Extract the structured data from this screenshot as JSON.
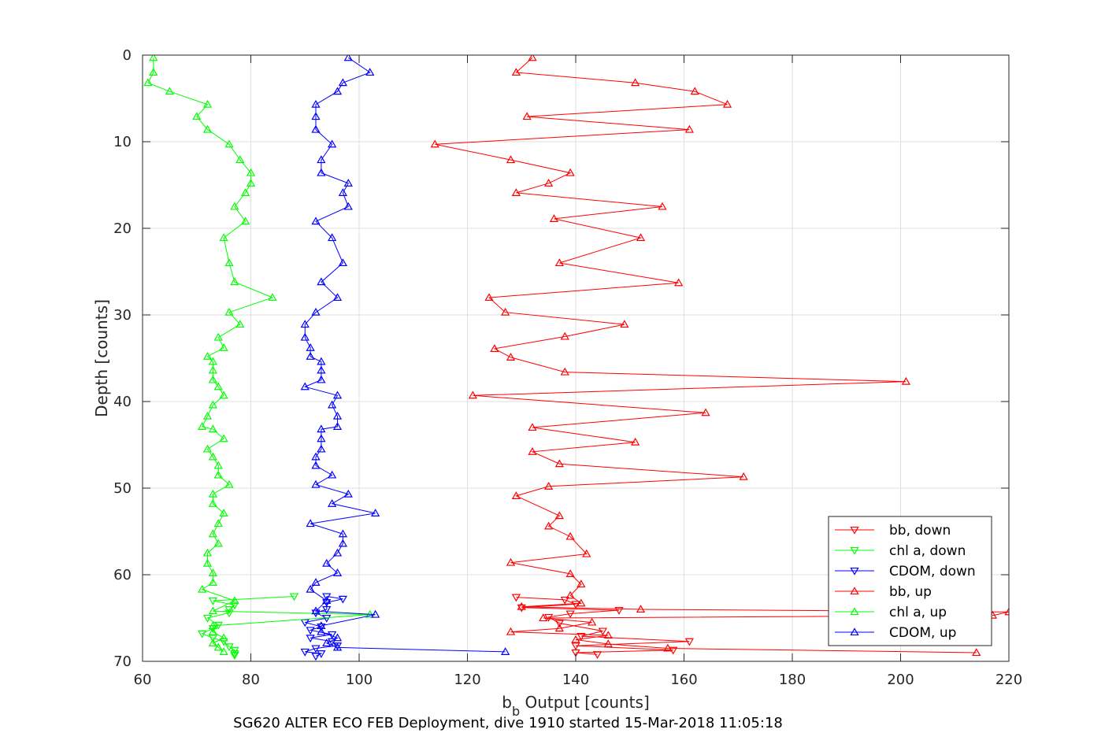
{
  "chart_data": {
    "type": "line",
    "xlabel_main": "b",
    "xlabel_sub": "b",
    "xlabel_rest": " Output [counts]",
    "ylabel": "Depth [counts]",
    "caption": "SG620 ALTER ECO FEB Deployment, dive 1910 started 15-Mar-2018 11:05:18",
    "xlim": [
      60,
      220
    ],
    "ylim": [
      0,
      70
    ],
    "y_reversed": true,
    "grid": true,
    "legend_position": "bottom-right",
    "xticks": [
      "60",
      "80",
      "100",
      "120",
      "140",
      "160",
      "180",
      "200",
      "220"
    ],
    "yticks": [
      "0",
      "10",
      "20",
      "30",
      "40",
      "50",
      "60",
      "70"
    ],
    "series": [
      {
        "name": "bb, down",
        "color": "#ff0000",
        "marker": "triangle-down",
        "points": [
          [
            129,
            62.6
          ],
          [
            138,
            62.9
          ],
          [
            140,
            63.4
          ],
          [
            130,
            63.8
          ],
          [
            148,
            64.1
          ],
          [
            139,
            64.5
          ],
          [
            135,
            64.9
          ],
          [
            137,
            65.6
          ],
          [
            145,
            66.5
          ],
          [
            141,
            67.1
          ],
          [
            161,
            67.7
          ],
          [
            140,
            68.2
          ],
          [
            158,
            68.7
          ],
          [
            140,
            69.0
          ],
          [
            144,
            69.2
          ]
        ]
      },
      {
        "name": "chl a, down",
        "color": "#00ff00",
        "marker": "triangle-down",
        "points": [
          [
            88,
            62.5
          ],
          [
            73,
            63.0
          ],
          [
            77,
            63.5
          ],
          [
            76,
            64.0
          ],
          [
            76,
            64.4
          ],
          [
            72,
            65.0
          ],
          [
            74,
            65.8
          ],
          [
            73,
            66.2
          ],
          [
            71,
            66.8
          ],
          [
            73,
            67.3
          ],
          [
            75,
            67.7
          ],
          [
            76,
            68.3
          ],
          [
            77,
            68.7
          ],
          [
            77,
            69.1
          ],
          [
            77,
            69.3
          ]
        ]
      },
      {
        "name": "CDOM, down",
        "color": "#0000ff",
        "marker": "triangle-down",
        "points": [
          [
            94,
            62.5
          ],
          [
            97,
            62.8
          ],
          [
            94,
            63.2
          ],
          [
            94,
            64.0
          ],
          [
            92,
            64.4
          ],
          [
            94,
            65.0
          ],
          [
            90,
            65.5
          ],
          [
            93,
            66.0
          ],
          [
            91,
            66.4
          ],
          [
            95,
            66.9
          ],
          [
            91,
            67.3
          ],
          [
            95,
            67.7
          ],
          [
            96,
            68.2
          ],
          [
            92,
            68.5
          ],
          [
            90,
            68.9
          ],
          [
            93,
            69.1
          ],
          [
            92,
            69.4
          ]
        ]
      },
      {
        "name": "bb, up",
        "color": "#ff0000",
        "marker": "triangle-up",
        "points": [
          [
            214,
            69.0
          ],
          [
            157,
            68.5
          ],
          [
            146,
            68.0
          ],
          [
            140,
            67.5
          ],
          [
            146,
            67.0
          ],
          [
            128,
            66.6
          ],
          [
            137,
            66.2
          ],
          [
            143,
            65.5
          ],
          [
            134,
            65.0
          ],
          [
            217,
            64.7
          ],
          [
            220,
            64.3
          ],
          [
            152,
            64.0
          ],
          [
            130,
            63.7
          ],
          [
            141,
            63.3
          ],
          [
            139,
            62.4
          ],
          [
            141,
            61.1
          ],
          [
            139,
            59.9
          ],
          [
            128,
            58.6
          ],
          [
            142,
            57.6
          ],
          [
            139,
            55.6
          ],
          [
            135,
            54.4
          ],
          [
            137,
            53.2
          ],
          [
            129,
            50.9
          ],
          [
            135,
            49.8
          ],
          [
            171,
            48.7
          ],
          [
            137,
            47.2
          ],
          [
            132,
            45.8
          ],
          [
            151,
            44.7
          ],
          [
            132,
            43.0
          ],
          [
            164,
            41.3
          ],
          [
            121,
            39.3
          ],
          [
            201,
            37.7
          ],
          [
            138,
            36.6
          ],
          [
            128,
            34.9
          ],
          [
            125,
            33.9
          ],
          [
            138,
            32.5
          ],
          [
            149,
            31.1
          ],
          [
            127,
            29.7
          ],
          [
            124,
            28.0
          ],
          [
            159,
            26.3
          ],
          [
            137,
            24.0
          ],
          [
            152,
            21.1
          ],
          [
            136,
            18.9
          ],
          [
            156,
            17.5
          ],
          [
            129,
            15.9
          ],
          [
            135,
            14.8
          ],
          [
            139,
            13.6
          ],
          [
            128,
            12.1
          ],
          [
            114,
            10.3
          ],
          [
            161,
            8.6
          ],
          [
            131,
            7.1
          ],
          [
            168,
            5.7
          ],
          [
            162,
            4.2
          ],
          [
            151,
            3.2
          ],
          [
            129,
            2.0
          ],
          [
            132,
            0.3
          ]
        ]
      },
      {
        "name": "chl a, up",
        "color": "#00ff00",
        "marker": "triangle-up",
        "points": [
          [
            75,
            68.9
          ],
          [
            74,
            68.4
          ],
          [
            73,
            67.9
          ],
          [
            75,
            67.3
          ],
          [
            73,
            66.6
          ],
          [
            73,
            65.9
          ],
          [
            102,
            64.6
          ],
          [
            73,
            64.2
          ],
          [
            77,
            63.0
          ],
          [
            71,
            61.7
          ],
          [
            73,
            60.9
          ],
          [
            73,
            59.8
          ],
          [
            72,
            58.7
          ],
          [
            72,
            57.5
          ],
          [
            74,
            56.4
          ],
          [
            73,
            55.3
          ],
          [
            74,
            54.1
          ],
          [
            75,
            52.9
          ],
          [
            73,
            51.8
          ],
          [
            73,
            50.7
          ],
          [
            76,
            49.6
          ],
          [
            74,
            48.5
          ],
          [
            74,
            47.4
          ],
          [
            73,
            46.4
          ],
          [
            72,
            45.5
          ],
          [
            75,
            44.3
          ],
          [
            73,
            43.2
          ],
          [
            71,
            42.9
          ],
          [
            72,
            41.7
          ],
          [
            73,
            40.4
          ],
          [
            75,
            39.3
          ],
          [
            74,
            38.3
          ],
          [
            73,
            37.5
          ],
          [
            73,
            36.4
          ],
          [
            73,
            35.4
          ],
          [
            72,
            34.8
          ],
          [
            75,
            33.8
          ],
          [
            74,
            32.6
          ],
          [
            78,
            31.1
          ],
          [
            76,
            29.7
          ],
          [
            84,
            28.0
          ],
          [
            77,
            26.2
          ],
          [
            76,
            24.0
          ],
          [
            75,
            21.1
          ],
          [
            79,
            19.2
          ],
          [
            77,
            17.5
          ],
          [
            79,
            15.9
          ],
          [
            80,
            14.8
          ],
          [
            80,
            13.6
          ],
          [
            78,
            12.1
          ],
          [
            76,
            10.3
          ],
          [
            72,
            8.6
          ],
          [
            70,
            7.1
          ],
          [
            72,
            5.7
          ],
          [
            65,
            4.2
          ],
          [
            61,
            3.2
          ],
          [
            62,
            2.0
          ],
          [
            62,
            0.3
          ]
        ]
      },
      {
        "name": "CDOM, up",
        "color": "#0000ff",
        "marker": "triangle-up",
        "points": [
          [
            127,
            68.9
          ],
          [
            96,
            68.4
          ],
          [
            94,
            67.9
          ],
          [
            96,
            67.3
          ],
          [
            93,
            66.6
          ],
          [
            93,
            65.9
          ],
          [
            103,
            64.6
          ],
          [
            92,
            64.2
          ],
          [
            94,
            63.0
          ],
          [
            91,
            61.7
          ],
          [
            92,
            60.9
          ],
          [
            96,
            59.8
          ],
          [
            94,
            58.7
          ],
          [
            96,
            57.5
          ],
          [
            97,
            56.4
          ],
          [
            97,
            55.3
          ],
          [
            91,
            54.1
          ],
          [
            103,
            52.9
          ],
          [
            95,
            51.8
          ],
          [
            98,
            50.7
          ],
          [
            92,
            49.6
          ],
          [
            95,
            48.5
          ],
          [
            92,
            47.4
          ],
          [
            92,
            46.4
          ],
          [
            93,
            45.5
          ],
          [
            93,
            44.3
          ],
          [
            93,
            43.2
          ],
          [
            96,
            42.9
          ],
          [
            96,
            41.7
          ],
          [
            95,
            40.4
          ],
          [
            96,
            39.3
          ],
          [
            90,
            38.3
          ],
          [
            93,
            37.5
          ],
          [
            93,
            36.4
          ],
          [
            93,
            35.4
          ],
          [
            91,
            34.8
          ],
          [
            91,
            33.8
          ],
          [
            90,
            32.6
          ],
          [
            90,
            31.1
          ],
          [
            92,
            29.7
          ],
          [
            96,
            28.0
          ],
          [
            93,
            26.2
          ],
          [
            97,
            24.0
          ],
          [
            95,
            21.1
          ],
          [
            92,
            19.2
          ],
          [
            98,
            17.5
          ],
          [
            97,
            15.9
          ],
          [
            98,
            14.8
          ],
          [
            93,
            13.6
          ],
          [
            93,
            12.1
          ],
          [
            95,
            10.3
          ],
          [
            92,
            8.6
          ],
          [
            92,
            7.1
          ],
          [
            92,
            5.7
          ],
          [
            96,
            4.2
          ],
          [
            97,
            3.2
          ],
          [
            102,
            2.0
          ],
          [
            98,
            0.3
          ]
        ]
      }
    ]
  }
}
